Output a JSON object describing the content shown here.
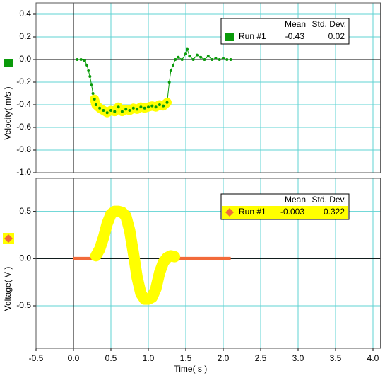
{
  "chart_data": [
    {
      "type": "line",
      "y_label": "Velocity( m/s )",
      "x": [
        0.05,
        0.1,
        0.15,
        0.18,
        0.2,
        0.22,
        0.24,
        0.26,
        0.28,
        0.3,
        0.35,
        0.4,
        0.45,
        0.5,
        0.55,
        0.6,
        0.65,
        0.7,
        0.75,
        0.8,
        0.85,
        0.9,
        0.95,
        1.0,
        1.05,
        1.1,
        1.15,
        1.2,
        1.25,
        1.28,
        1.3,
        1.33,
        1.36,
        1.4,
        1.45,
        1.5,
        1.52,
        1.55,
        1.6,
        1.65,
        1.7,
        1.75,
        1.8,
        1.85,
        1.9,
        1.95,
        2.0,
        2.05,
        2.1
      ],
      "series": [
        {
          "name": "Run #1",
          "color": "#0a9a0a",
          "marker": "square",
          "markers": true,
          "line_width": 1,
          "values": [
            0.0,
            0.0,
            -0.01,
            -0.05,
            -0.1,
            -0.15,
            -0.22,
            -0.3,
            -0.35,
            -0.4,
            -0.43,
            -0.45,
            -0.47,
            -0.45,
            -0.46,
            -0.42,
            -0.46,
            -0.44,
            -0.45,
            -0.43,
            -0.44,
            -0.42,
            -0.43,
            -0.42,
            -0.41,
            -0.42,
            -0.4,
            -0.41,
            -0.38,
            -0.2,
            -0.1,
            -0.05,
            0.0,
            0.02,
            0.0,
            0.05,
            0.09,
            0.03,
            0.0,
            0.04,
            0.02,
            0.0,
            0.03,
            0.0,
            0.01,
            0.0,
            0.01,
            0.0,
            0.0
          ],
          "stats": [
            -0.43,
            0.02
          ]
        }
      ],
      "legend_headers": [
        "Mean",
        "Std. Dev."
      ],
      "legend": "top-right",
      "highlight": {
        "range": [
          0.27,
          1.27
        ],
        "color": "#ffff00",
        "width": 13
      },
      "xlim": [
        -0.5,
        4.1
      ],
      "xticks": [
        -0.5,
        {
          "value": 0,
          "label": "0.0"
        },
        0.5,
        {
          "value": 1,
          "label": "1.0"
        },
        1.5,
        {
          "value": 2,
          "label": "2.0"
        },
        2.5,
        {
          "value": 3,
          "label": "3.0"
        },
        3.5,
        {
          "value": 4,
          "label": "4.0"
        }
      ],
      "show_x_tick_labels": false,
      "ylim": [
        -1.0,
        0.5
      ],
      "yticks": [
        0.4,
        0.2,
        {
          "value": 0,
          "label": "0.0"
        },
        -0.2,
        -0.4,
        -0.6,
        -0.8,
        {
          "value": -1,
          "label": "-1.0"
        }
      ],
      "grid": true
    },
    {
      "type": "line",
      "y_label": "Voltage( V )",
      "x_label": "Time( s )",
      "x": [
        0,
        0.05,
        0.1,
        0.15,
        0.2,
        0.25,
        0.3,
        0.35,
        0.4,
        0.45,
        0.5,
        0.55,
        0.6,
        0.65,
        0.7,
        0.75,
        0.8,
        0.85,
        0.9,
        0.95,
        1.0,
        1.05,
        1.1,
        1.15,
        1.2,
        1.25,
        1.3,
        1.35,
        1.4,
        1.45,
        1.5,
        1.55,
        1.6,
        1.65,
        1.7,
        1.75,
        1.8,
        1.85,
        1.9,
        1.95,
        2.0,
        2.05,
        2.1
      ],
      "series": [
        {
          "name": "Run #1",
          "color": "#f26a3a",
          "marker": "diamond",
          "markers": false,
          "line_width": 5,
          "values": [
            0,
            0,
            0,
            0,
            0,
            0,
            0.03,
            0.1,
            0.22,
            0.37,
            0.47,
            0.5,
            0.5,
            0.49,
            0.45,
            0.3,
            0.06,
            -0.2,
            -0.37,
            -0.43,
            -0.43,
            -0.41,
            -0.32,
            -0.15,
            -0.04,
            0.01,
            0.03,
            0.02,
            0,
            0,
            0,
            0,
            0,
            0,
            0,
            0,
            0,
            0,
            0,
            0,
            0,
            0,
            0
          ],
          "stats": [
            -0.003,
            0.322
          ]
        }
      ],
      "legend_headers": [
        "Mean",
        "Std. Dev."
      ],
      "legend": "top-right",
      "legend_row_color": "#ffff00",
      "highlight": {
        "range": [
          0.27,
          1.38
        ],
        "color": "#ffff00",
        "width": 16
      },
      "xlim": [
        -0.5,
        4.1
      ],
      "xticks": [
        -0.5,
        {
          "value": 0,
          "label": "0.0"
        },
        0.5,
        {
          "value": 1,
          "label": "1.0"
        },
        1.5,
        {
          "value": 2,
          "label": "2.0"
        },
        2.5,
        {
          "value": 3,
          "label": "3.0"
        },
        3.5,
        {
          "value": 4,
          "label": "4.0"
        }
      ],
      "show_x_tick_labels": true,
      "ylim": [
        -0.95,
        0.85
      ],
      "yticks": [
        0.5,
        {
          "value": 0,
          "label": "0.0"
        },
        -0.5
      ],
      "grid": true
    }
  ]
}
